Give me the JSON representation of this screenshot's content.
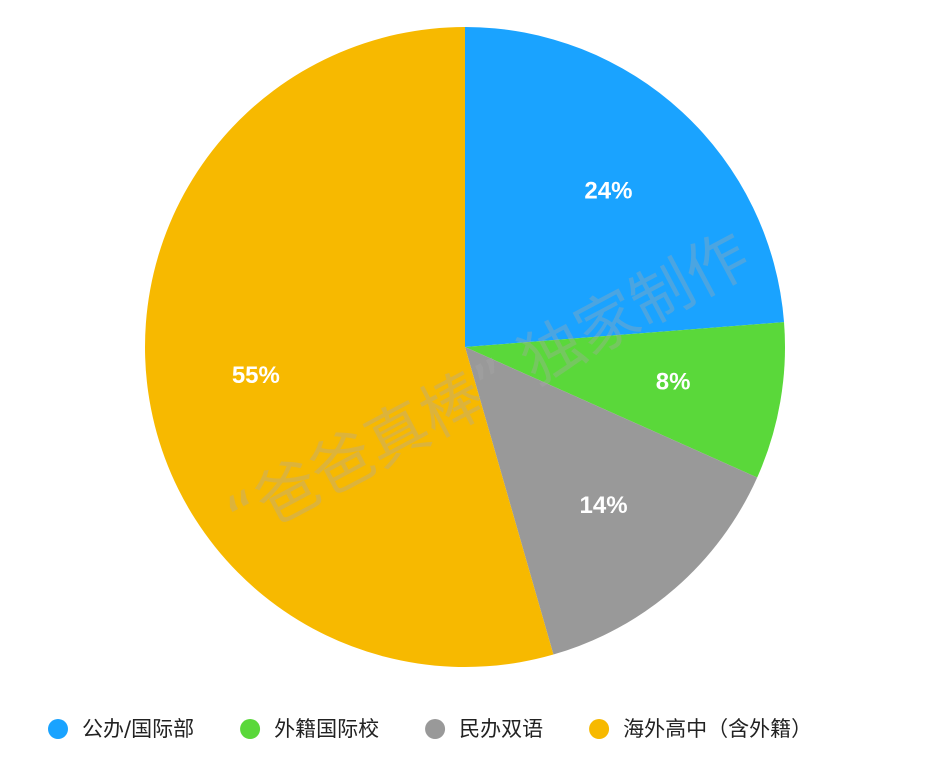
{
  "chart_data": {
    "type": "pie",
    "categories": [
      "公办/国际部",
      "外籍国际校",
      "民办双语",
      "海外高中（含外籍）"
    ],
    "values": [
      24,
      8,
      14,
      55
    ],
    "value_labels": [
      "24%",
      "8%",
      "14%",
      "55%"
    ],
    "colors": [
      "#1aa3ff",
      "#5ad83a",
      "#999999",
      "#f7b900"
    ],
    "legend": "bottom",
    "watermark": "“爸爸真棒” 独家制作"
  }
}
